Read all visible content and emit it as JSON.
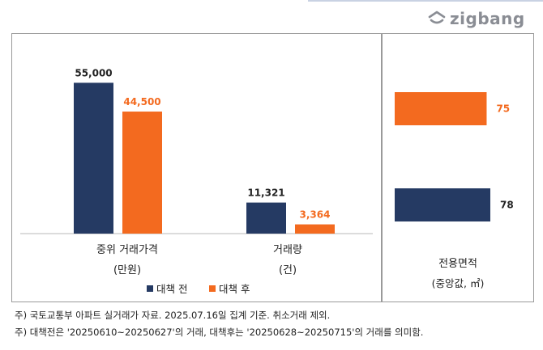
{
  "brand": {
    "logo_text": "zigbang"
  },
  "colors": {
    "before": "#253a63",
    "after": "#f36a1f",
    "axis": "#b8b8b8"
  },
  "chart_data": [
    {
      "type": "bar",
      "categories": [
        {
          "label": "중위 거래가격",
          "unit": "(만원)"
        },
        {
          "label": "거래량",
          "unit": "(건)"
        }
      ],
      "series": [
        {
          "name": "대책 전",
          "values": [
            55000,
            11321
          ],
          "value_labels": [
            "55,000",
            "11,321"
          ]
        },
        {
          "name": "대책 후",
          "values": [
            44500,
            3364
          ],
          "value_labels": [
            "44,500",
            "3,364"
          ]
        }
      ],
      "legend": "bottom"
    },
    {
      "type": "bar",
      "orientation": "horizontal",
      "category": {
        "label": "전용면적",
        "unit": "(중앙값, ㎡)"
      },
      "series": [
        {
          "name": "대책 후",
          "value": 75,
          "value_label": "75"
        },
        {
          "name": "대책 전",
          "value": 78,
          "value_label": "78"
        }
      ]
    }
  ],
  "footnotes": [
    "주) 국토교통부 아파트 실거래가 자료. 2025.07.16일 집계 기준. 취소거래 제외.",
    "주) 대책전은 '20250610~20250627'의 거래, 대책후는 '20250628~20250715'의 거래를 의미함."
  ]
}
